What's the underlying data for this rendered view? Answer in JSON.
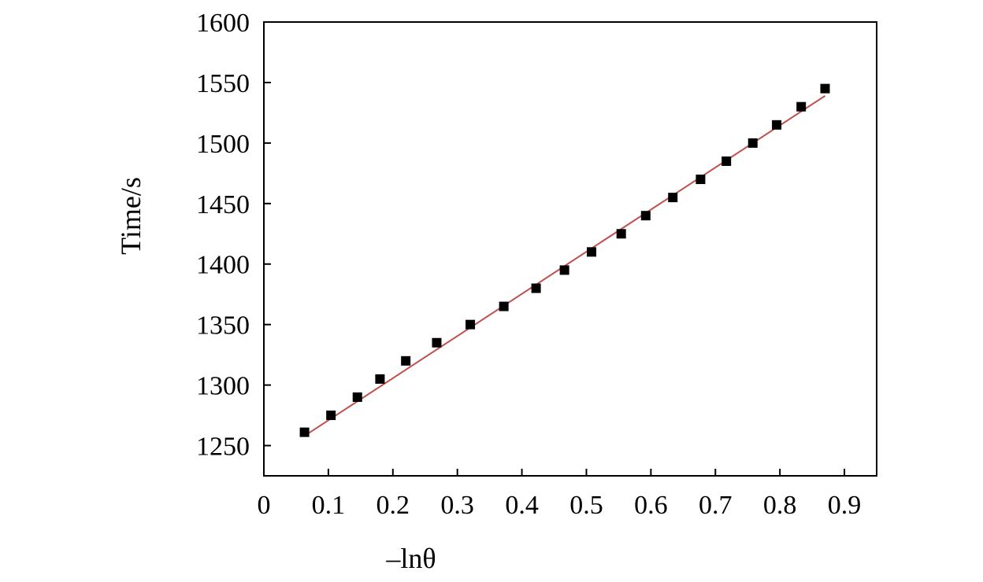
{
  "chart_data": {
    "type": "scatter",
    "title": "",
    "xlabel": "–lnθ",
    "ylabel": "Time/s",
    "xlim": [
      0,
      0.95
    ],
    "ylim": [
      1225,
      1600
    ],
    "grid": false,
    "x_ticks": [
      "0",
      "0.1",
      "0.2",
      "0.3",
      "0.4",
      "0.5",
      "0.6",
      "0.7",
      "0.8",
      "0.9"
    ],
    "y_ticks": [
      "1250",
      "1300",
      "1350",
      "1400",
      "1450",
      "1500",
      "1550",
      "1600"
    ],
    "series": [
      {
        "marker": "square",
        "color": "#000000",
        "points": [
          {
            "x": 0.063,
            "y": 1261
          },
          {
            "x": 0.104,
            "y": 1275
          },
          {
            "x": 0.145,
            "y": 1290
          },
          {
            "x": 0.18,
            "y": 1305
          },
          {
            "x": 0.22,
            "y": 1320
          },
          {
            "x": 0.268,
            "y": 1335
          },
          {
            "x": 0.32,
            "y": 1350
          },
          {
            "x": 0.372,
            "y": 1365
          },
          {
            "x": 0.422,
            "y": 1380
          },
          {
            "x": 0.466,
            "y": 1395
          },
          {
            "x": 0.508,
            "y": 1410
          },
          {
            "x": 0.554,
            "y": 1425
          },
          {
            "x": 0.592,
            "y": 1440
          },
          {
            "x": 0.634,
            "y": 1455
          },
          {
            "x": 0.677,
            "y": 1470
          },
          {
            "x": 0.717,
            "y": 1485
          },
          {
            "x": 0.758,
            "y": 1500
          },
          {
            "x": 0.795,
            "y": 1515
          },
          {
            "x": 0.833,
            "y": 1530
          },
          {
            "x": 0.87,
            "y": 1545
          }
        ]
      },
      {
        "type": "line",
        "color": "#c0504d",
        "points": [
          {
            "x": 0.063,
            "y": 1258
          },
          {
            "x": 0.87,
            "y": 1539
          }
        ]
      }
    ]
  }
}
